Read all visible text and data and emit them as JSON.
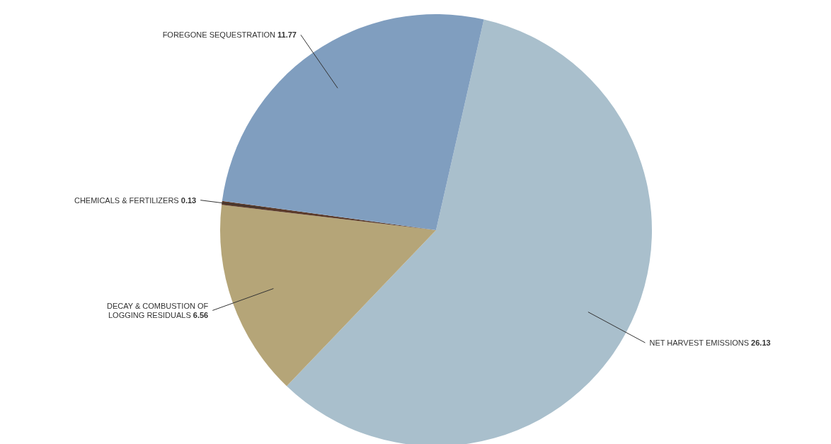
{
  "chart_data": {
    "type": "pie",
    "categories": [
      "NET HARVEST EMISSIONS",
      "DECAY & COMBUSTION OF LOGGING RESIDUALS",
      "CHEMICALS & FERTILIZERS",
      "FOREGONE SEQUESTRATION"
    ],
    "values": [
      26.13,
      6.56,
      0.13,
      11.77
    ],
    "colors": [
      "#a9bfcc",
      "#b5a578",
      "#5b3b2b",
      "#809ebf"
    ],
    "data_labels": true
  }
}
